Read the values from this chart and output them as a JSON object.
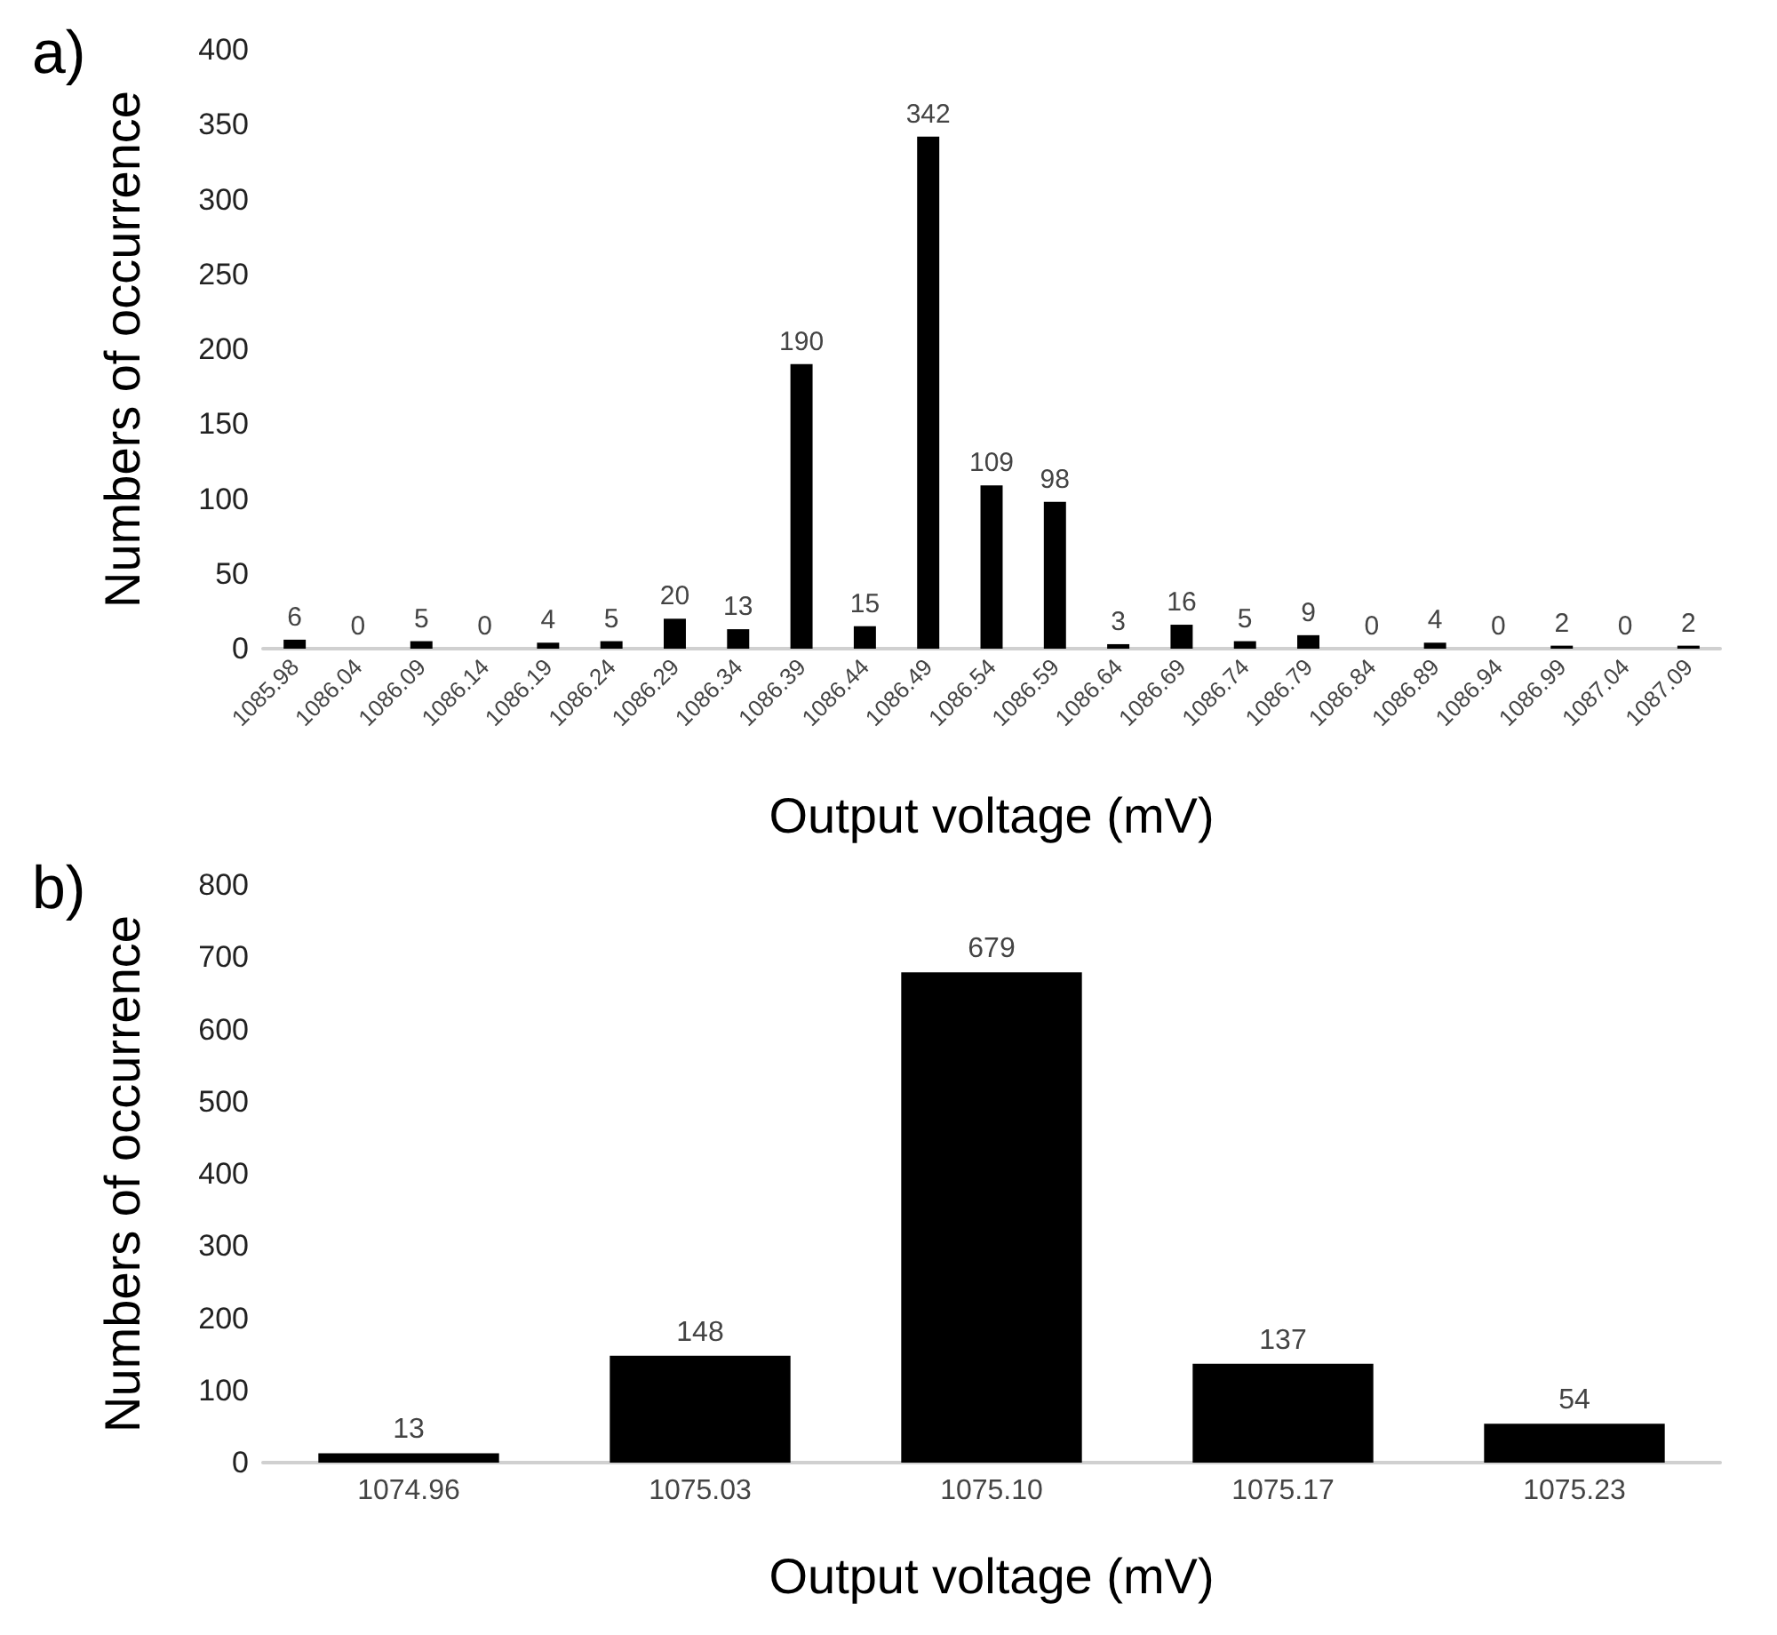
{
  "chart_data": [
    {
      "type": "bar",
      "annotations": [
        "a)"
      ],
      "xlabel": "Output voltage (mV)",
      "ylabel": "Numbers of occurrence",
      "categories": [
        "1085.98",
        "1086.04",
        "1086.09",
        "1086.14",
        "1086.19",
        "1086.24",
        "1086.29",
        "1086.34",
        "1086.39",
        "1086.44",
        "1086.49",
        "1086.54",
        "1086.59",
        "1086.64",
        "1086.69",
        "1086.74",
        "1086.79",
        "1086.84",
        "1086.89",
        "1086.94",
        "1086.99",
        "1087.04",
        "1087.09"
      ],
      "values": [
        6,
        0,
        5,
        0,
        4,
        5,
        20,
        13,
        190,
        15,
        342,
        109,
        98,
        3,
        16,
        5,
        9,
        0,
        4,
        0,
        2,
        0,
        2
      ],
      "color": "#000000",
      "ylim": [
        0,
        400
      ],
      "yticks": [
        0,
        50,
        100,
        150,
        200,
        250,
        300,
        350,
        400
      ],
      "grid": false,
      "data_labels": true
    },
    {
      "type": "bar",
      "annotations": [
        "b)"
      ],
      "xlabel": "Output voltage (mV)",
      "ylabel": "Numbers of occurrence",
      "categories": [
        "1074.96",
        "1075.03",
        "1075.10",
        "1075.17",
        "1075.23"
      ],
      "values": [
        13,
        148,
        679,
        137,
        54
      ],
      "color": "#000000",
      "ylim": [
        0,
        800
      ],
      "yticks": [
        0,
        100,
        200,
        300,
        400,
        500,
        600,
        700,
        800
      ],
      "grid": false,
      "data_labels": true
    }
  ]
}
